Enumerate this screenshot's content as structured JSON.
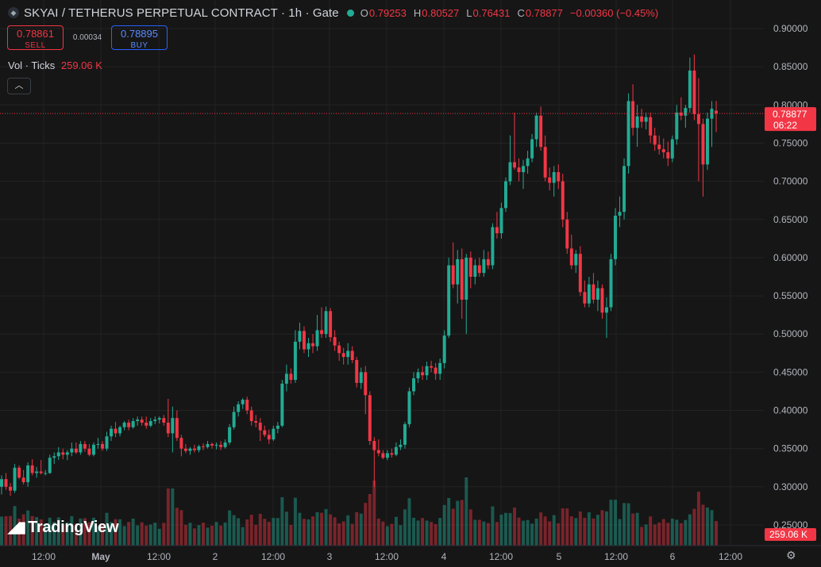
{
  "header": {
    "symbol_icon": "symbol-icon",
    "title": "SKYAI / TETHERUS PERPETUAL CONTRACT · 1h · Gate",
    "o_label": "O",
    "o": "0.79253",
    "h_label": "H",
    "h": "0.80527",
    "l_label": "L",
    "l": "0.76431",
    "c_label": "C",
    "c": "0.78877",
    "change": "−0.00360 (−0.45%)"
  },
  "trade": {
    "sell_price": "0.78861",
    "sell_label": "SELL",
    "spread": "0.00034",
    "buy_price": "0.78895",
    "buy_label": "BUY"
  },
  "volume_legend": {
    "label": "Vol · Ticks",
    "value": "259.06 K"
  },
  "branding": {
    "logo_text": "TradingView"
  },
  "colors": {
    "up": "#22ab94",
    "down": "#f23645",
    "background": "#161616",
    "grid": "#232323"
  },
  "chart_data": {
    "type": "candlestick",
    "timeframe": "1h",
    "y_axis": {
      "range": [
        0.245,
        0.915
      ],
      "tick_labels": [
        "0.90000",
        "0.85000",
        "0.80000",
        "0.75000",
        "0.70000",
        "0.65000",
        "0.60000",
        "0.55000",
        "0.50000",
        "0.45000",
        "0.40000",
        "0.35000",
        "0.30000",
        "0.25000"
      ]
    },
    "x_axis": {
      "tick_labels": [
        "12:00",
        "May",
        "12:00",
        "2",
        "12:00",
        "3",
        "12:00",
        "4",
        "12:00",
        "5",
        "12:00",
        "6",
        "12:00"
      ]
    },
    "last_price": {
      "value": "0.78877",
      "countdown": "06:22"
    },
    "volume_last": "259.06 K",
    "grid": true,
    "candles": [
      {
        "o": 0.3,
        "h": 0.315,
        "l": 0.29,
        "c": 0.31
      },
      {
        "o": 0.31,
        "h": 0.318,
        "l": 0.296,
        "c": 0.3
      },
      {
        "o": 0.3,
        "h": 0.305,
        "l": 0.288,
        "c": 0.295
      },
      {
        "o": 0.295,
        "h": 0.33,
        "l": 0.292,
        "c": 0.325
      },
      {
        "o": 0.325,
        "h": 0.328,
        "l": 0.31,
        "c": 0.312
      },
      {
        "o": 0.312,
        "h": 0.322,
        "l": 0.303,
        "c": 0.306
      },
      {
        "o": 0.306,
        "h": 0.332,
        "l": 0.3,
        "c": 0.328
      },
      {
        "o": 0.328,
        "h": 0.336,
        "l": 0.315,
        "c": 0.318
      },
      {
        "o": 0.318,
        "h": 0.326,
        "l": 0.312,
        "c": 0.32
      },
      {
        "o": 0.32,
        "h": 0.335,
        "l": 0.316,
        "c": 0.318
      },
      {
        "o": 0.318,
        "h": 0.322,
        "l": 0.315,
        "c": 0.318
      },
      {
        "o": 0.318,
        "h": 0.342,
        "l": 0.317,
        "c": 0.338
      },
      {
        "o": 0.338,
        "h": 0.345,
        "l": 0.33,
        "c": 0.34
      },
      {
        "o": 0.34,
        "h": 0.352,
        "l": 0.335,
        "c": 0.345
      },
      {
        "o": 0.345,
        "h": 0.35,
        "l": 0.336,
        "c": 0.342
      },
      {
        "o": 0.342,
        "h": 0.348,
        "l": 0.335,
        "c": 0.345
      },
      {
        "o": 0.345,
        "h": 0.358,
        "l": 0.34,
        "c": 0.35
      },
      {
        "o": 0.35,
        "h": 0.358,
        "l": 0.343,
        "c": 0.345
      },
      {
        "o": 0.345,
        "h": 0.36,
        "l": 0.342,
        "c": 0.356
      },
      {
        "o": 0.356,
        "h": 0.36,
        "l": 0.346,
        "c": 0.35
      },
      {
        "o": 0.35,
        "h": 0.356,
        "l": 0.34,
        "c": 0.342
      },
      {
        "o": 0.342,
        "h": 0.358,
        "l": 0.34,
        "c": 0.355
      },
      {
        "o": 0.355,
        "h": 0.364,
        "l": 0.35,
        "c": 0.356
      },
      {
        "o": 0.356,
        "h": 0.36,
        "l": 0.347,
        "c": 0.35
      },
      {
        "o": 0.35,
        "h": 0.372,
        "l": 0.347,
        "c": 0.366
      },
      {
        "o": 0.366,
        "h": 0.38,
        "l": 0.36,
        "c": 0.376
      },
      {
        "o": 0.376,
        "h": 0.385,
        "l": 0.365,
        "c": 0.37
      },
      {
        "o": 0.37,
        "h": 0.38,
        "l": 0.366,
        "c": 0.378
      },
      {
        "o": 0.378,
        "h": 0.386,
        "l": 0.374,
        "c": 0.384
      },
      {
        "o": 0.384,
        "h": 0.388,
        "l": 0.374,
        "c": 0.378
      },
      {
        "o": 0.378,
        "h": 0.39,
        "l": 0.376,
        "c": 0.386
      },
      {
        "o": 0.386,
        "h": 0.392,
        "l": 0.38,
        "c": 0.388
      },
      {
        "o": 0.388,
        "h": 0.392,
        "l": 0.38,
        "c": 0.384
      },
      {
        "o": 0.384,
        "h": 0.392,
        "l": 0.376,
        "c": 0.38
      },
      {
        "o": 0.38,
        "h": 0.39,
        "l": 0.378,
        "c": 0.386
      },
      {
        "o": 0.386,
        "h": 0.392,
        "l": 0.382,
        "c": 0.388
      },
      {
        "o": 0.388,
        "h": 0.392,
        "l": 0.383,
        "c": 0.39
      },
      {
        "o": 0.39,
        "h": 0.394,
        "l": 0.38,
        "c": 0.384
      },
      {
        "o": 0.384,
        "h": 0.415,
        "l": 0.365,
        "c": 0.37
      },
      {
        "o": 0.37,
        "h": 0.405,
        "l": 0.345,
        "c": 0.39
      },
      {
        "o": 0.39,
        "h": 0.4,
        "l": 0.36,
        "c": 0.364
      },
      {
        "o": 0.364,
        "h": 0.368,
        "l": 0.34,
        "c": 0.35
      },
      {
        "o": 0.35,
        "h": 0.356,
        "l": 0.344,
        "c": 0.347
      },
      {
        "o": 0.347,
        "h": 0.352,
        "l": 0.342,
        "c": 0.35
      },
      {
        "o": 0.35,
        "h": 0.355,
        "l": 0.345,
        "c": 0.348
      },
      {
        "o": 0.348,
        "h": 0.355,
        "l": 0.345,
        "c": 0.353
      },
      {
        "o": 0.353,
        "h": 0.357,
        "l": 0.348,
        "c": 0.352
      },
      {
        "o": 0.352,
        "h": 0.36,
        "l": 0.35,
        "c": 0.356
      },
      {
        "o": 0.356,
        "h": 0.358,
        "l": 0.35,
        "c": 0.354
      },
      {
        "o": 0.354,
        "h": 0.358,
        "l": 0.349,
        "c": 0.355
      },
      {
        "o": 0.355,
        "h": 0.36,
        "l": 0.348,
        "c": 0.352
      },
      {
        "o": 0.352,
        "h": 0.362,
        "l": 0.35,
        "c": 0.358
      },
      {
        "o": 0.358,
        "h": 0.382,
        "l": 0.355,
        "c": 0.378
      },
      {
        "o": 0.378,
        "h": 0.405,
        "l": 0.375,
        "c": 0.398
      },
      {
        "o": 0.398,
        "h": 0.412,
        "l": 0.392,
        "c": 0.408
      },
      {
        "o": 0.408,
        "h": 0.416,
        "l": 0.402,
        "c": 0.414
      },
      {
        "o": 0.414,
        "h": 0.418,
        "l": 0.395,
        "c": 0.4
      },
      {
        "o": 0.4,
        "h": 0.405,
        "l": 0.38,
        "c": 0.386
      },
      {
        "o": 0.386,
        "h": 0.394,
        "l": 0.378,
        "c": 0.384
      },
      {
        "o": 0.384,
        "h": 0.39,
        "l": 0.36,
        "c": 0.374
      },
      {
        "o": 0.374,
        "h": 0.38,
        "l": 0.365,
        "c": 0.368
      },
      {
        "o": 0.368,
        "h": 0.375,
        "l": 0.356,
        "c": 0.362
      },
      {
        "o": 0.362,
        "h": 0.38,
        "l": 0.36,
        "c": 0.376
      },
      {
        "o": 0.376,
        "h": 0.385,
        "l": 0.37,
        "c": 0.38
      },
      {
        "o": 0.38,
        "h": 0.44,
        "l": 0.378,
        "c": 0.435
      },
      {
        "o": 0.435,
        "h": 0.46,
        "l": 0.425,
        "c": 0.448
      },
      {
        "o": 0.448,
        "h": 0.455,
        "l": 0.435,
        "c": 0.44
      },
      {
        "o": 0.44,
        "h": 0.505,
        "l": 0.436,
        "c": 0.49
      },
      {
        "o": 0.49,
        "h": 0.515,
        "l": 0.48,
        "c": 0.504
      },
      {
        "o": 0.504,
        "h": 0.51,
        "l": 0.475,
        "c": 0.48
      },
      {
        "o": 0.48,
        "h": 0.495,
        "l": 0.47,
        "c": 0.488
      },
      {
        "o": 0.488,
        "h": 0.5,
        "l": 0.475,
        "c": 0.484
      },
      {
        "o": 0.484,
        "h": 0.525,
        "l": 0.478,
        "c": 0.505
      },
      {
        "o": 0.505,
        "h": 0.535,
        "l": 0.495,
        "c": 0.5
      },
      {
        "o": 0.5,
        "h": 0.536,
        "l": 0.495,
        "c": 0.53
      },
      {
        "o": 0.53,
        "h": 0.534,
        "l": 0.49,
        "c": 0.496
      },
      {
        "o": 0.496,
        "h": 0.505,
        "l": 0.478,
        "c": 0.485
      },
      {
        "o": 0.485,
        "h": 0.49,
        "l": 0.465,
        "c": 0.475
      },
      {
        "o": 0.475,
        "h": 0.482,
        "l": 0.46,
        "c": 0.47
      },
      {
        "o": 0.47,
        "h": 0.488,
        "l": 0.46,
        "c": 0.478
      },
      {
        "o": 0.478,
        "h": 0.484,
        "l": 0.462,
        "c": 0.466
      },
      {
        "o": 0.466,
        "h": 0.47,
        "l": 0.43,
        "c": 0.436
      },
      {
        "o": 0.436,
        "h": 0.456,
        "l": 0.428,
        "c": 0.45
      },
      {
        "o": 0.45,
        "h": 0.458,
        "l": 0.395,
        "c": 0.42
      },
      {
        "o": 0.42,
        "h": 0.425,
        "l": 0.355,
        "c": 0.36
      },
      {
        "o": 0.36,
        "h": 0.365,
        "l": 0.3,
        "c": 0.348
      },
      {
        "o": 0.348,
        "h": 0.362,
        "l": 0.34,
        "c": 0.344
      },
      {
        "o": 0.344,
        "h": 0.348,
        "l": 0.336,
        "c": 0.338
      },
      {
        "o": 0.338,
        "h": 0.348,
        "l": 0.335,
        "c": 0.344
      },
      {
        "o": 0.344,
        "h": 0.35,
        "l": 0.338,
        "c": 0.342
      },
      {
        "o": 0.342,
        "h": 0.358,
        "l": 0.34,
        "c": 0.352
      },
      {
        "o": 0.352,
        "h": 0.362,
        "l": 0.348,
        "c": 0.355
      },
      {
        "o": 0.355,
        "h": 0.385,
        "l": 0.35,
        "c": 0.382
      },
      {
        "o": 0.382,
        "h": 0.43,
        "l": 0.378,
        "c": 0.425
      },
      {
        "o": 0.425,
        "h": 0.45,
        "l": 0.42,
        "c": 0.442
      },
      {
        "o": 0.442,
        "h": 0.455,
        "l": 0.436,
        "c": 0.45
      },
      {
        "o": 0.45,
        "h": 0.458,
        "l": 0.44,
        "c": 0.446
      },
      {
        "o": 0.446,
        "h": 0.464,
        "l": 0.44,
        "c": 0.458
      },
      {
        "o": 0.458,
        "h": 0.465,
        "l": 0.45,
        "c": 0.456
      },
      {
        "o": 0.456,
        "h": 0.462,
        "l": 0.44,
        "c": 0.448
      },
      {
        "o": 0.448,
        "h": 0.468,
        "l": 0.44,
        "c": 0.462
      },
      {
        "o": 0.462,
        "h": 0.505,
        "l": 0.455,
        "c": 0.498
      },
      {
        "o": 0.498,
        "h": 0.6,
        "l": 0.495,
        "c": 0.59
      },
      {
        "o": 0.59,
        "h": 0.62,
        "l": 0.56,
        "c": 0.565
      },
      {
        "o": 0.565,
        "h": 0.61,
        "l": 0.54,
        "c": 0.598
      },
      {
        "o": 0.598,
        "h": 0.612,
        "l": 0.52,
        "c": 0.545
      },
      {
        "o": 0.545,
        "h": 0.605,
        "l": 0.5,
        "c": 0.6
      },
      {
        "o": 0.6,
        "h": 0.608,
        "l": 0.56,
        "c": 0.575
      },
      {
        "o": 0.575,
        "h": 0.598,
        "l": 0.565,
        "c": 0.59
      },
      {
        "o": 0.59,
        "h": 0.6,
        "l": 0.575,
        "c": 0.58
      },
      {
        "o": 0.58,
        "h": 0.61,
        "l": 0.575,
        "c": 0.598
      },
      {
        "o": 0.598,
        "h": 0.608,
        "l": 0.585,
        "c": 0.59
      },
      {
        "o": 0.59,
        "h": 0.645,
        "l": 0.585,
        "c": 0.64
      },
      {
        "o": 0.64,
        "h": 0.66,
        "l": 0.625,
        "c": 0.632
      },
      {
        "o": 0.632,
        "h": 0.672,
        "l": 0.625,
        "c": 0.665
      },
      {
        "o": 0.665,
        "h": 0.705,
        "l": 0.66,
        "c": 0.7
      },
      {
        "o": 0.7,
        "h": 0.76,
        "l": 0.695,
        "c": 0.725
      },
      {
        "o": 0.725,
        "h": 0.79,
        "l": 0.715,
        "c": 0.718
      },
      {
        "o": 0.718,
        "h": 0.73,
        "l": 0.7,
        "c": 0.712
      },
      {
        "o": 0.712,
        "h": 0.728,
        "l": 0.69,
        "c": 0.72
      },
      {
        "o": 0.72,
        "h": 0.74,
        "l": 0.71,
        "c": 0.73
      },
      {
        "o": 0.73,
        "h": 0.762,
        "l": 0.725,
        "c": 0.755
      },
      {
        "o": 0.755,
        "h": 0.79,
        "l": 0.745,
        "c": 0.786
      },
      {
        "o": 0.786,
        "h": 0.798,
        "l": 0.74,
        "c": 0.745
      },
      {
        "o": 0.745,
        "h": 0.76,
        "l": 0.7,
        "c": 0.705
      },
      {
        "o": 0.705,
        "h": 0.718,
        "l": 0.688,
        "c": 0.698
      },
      {
        "o": 0.698,
        "h": 0.72,
        "l": 0.68,
        "c": 0.712
      },
      {
        "o": 0.712,
        "h": 0.722,
        "l": 0.69,
        "c": 0.7
      },
      {
        "o": 0.7,
        "h": 0.71,
        "l": 0.64,
        "c": 0.65
      },
      {
        "o": 0.65,
        "h": 0.66,
        "l": 0.605,
        "c": 0.612
      },
      {
        "o": 0.612,
        "h": 0.63,
        "l": 0.585,
        "c": 0.59
      },
      {
        "o": 0.59,
        "h": 0.61,
        "l": 0.58,
        "c": 0.605
      },
      {
        "o": 0.605,
        "h": 0.615,
        "l": 0.55,
        "c": 0.555
      },
      {
        "o": 0.555,
        "h": 0.57,
        "l": 0.535,
        "c": 0.54
      },
      {
        "o": 0.54,
        "h": 0.575,
        "l": 0.535,
        "c": 0.565
      },
      {
        "o": 0.565,
        "h": 0.58,
        "l": 0.54,
        "c": 0.545
      },
      {
        "o": 0.545,
        "h": 0.57,
        "l": 0.53,
        "c": 0.56
      },
      {
        "o": 0.56,
        "h": 0.565,
        "l": 0.52,
        "c": 0.528
      },
      {
        "o": 0.528,
        "h": 0.548,
        "l": 0.495,
        "c": 0.535
      },
      {
        "o": 0.535,
        "h": 0.605,
        "l": 0.53,
        "c": 0.598
      },
      {
        "o": 0.598,
        "h": 0.665,
        "l": 0.59,
        "c": 0.655
      },
      {
        "o": 0.655,
        "h": 0.68,
        "l": 0.64,
        "c": 0.66
      },
      {
        "o": 0.66,
        "h": 0.73,
        "l": 0.65,
        "c": 0.72
      },
      {
        "o": 0.72,
        "h": 0.815,
        "l": 0.71,
        "c": 0.805
      },
      {
        "o": 0.805,
        "h": 0.827,
        "l": 0.76,
        "c": 0.77
      },
      {
        "o": 0.77,
        "h": 0.8,
        "l": 0.745,
        "c": 0.785
      },
      {
        "o": 0.785,
        "h": 0.795,
        "l": 0.77,
        "c": 0.778
      },
      {
        "o": 0.778,
        "h": 0.79,
        "l": 0.768,
        "c": 0.784
      },
      {
        "o": 0.784,
        "h": 0.79,
        "l": 0.75,
        "c": 0.76
      },
      {
        "o": 0.76,
        "h": 0.77,
        "l": 0.74,
        "c": 0.748
      },
      {
        "o": 0.748,
        "h": 0.76,
        "l": 0.735,
        "c": 0.742
      },
      {
        "o": 0.742,
        "h": 0.756,
        "l": 0.73,
        "c": 0.738
      },
      {
        "o": 0.738,
        "h": 0.752,
        "l": 0.72,
        "c": 0.73
      },
      {
        "o": 0.73,
        "h": 0.76,
        "l": 0.725,
        "c": 0.755
      },
      {
        "o": 0.755,
        "h": 0.8,
        "l": 0.748,
        "c": 0.79
      },
      {
        "o": 0.79,
        "h": 0.81,
        "l": 0.78,
        "c": 0.786
      },
      {
        "o": 0.786,
        "h": 0.8,
        "l": 0.77,
        "c": 0.796
      },
      {
        "o": 0.796,
        "h": 0.862,
        "l": 0.79,
        "c": 0.845
      },
      {
        "o": 0.845,
        "h": 0.866,
        "l": 0.78,
        "c": 0.788
      },
      {
        "o": 0.788,
        "h": 0.835,
        "l": 0.7,
        "c": 0.775
      },
      {
        "o": 0.775,
        "h": 0.782,
        "l": 0.68,
        "c": 0.722
      },
      {
        "o": 0.722,
        "h": 0.79,
        "l": 0.715,
        "c": 0.782
      },
      {
        "o": 0.782,
        "h": 0.805,
        "l": 0.745,
        "c": 0.795
      },
      {
        "o": 0.79253,
        "h": 0.80527,
        "l": 0.76431,
        "c": 0.78877
      }
    ],
    "volume_range_max": 100
  }
}
